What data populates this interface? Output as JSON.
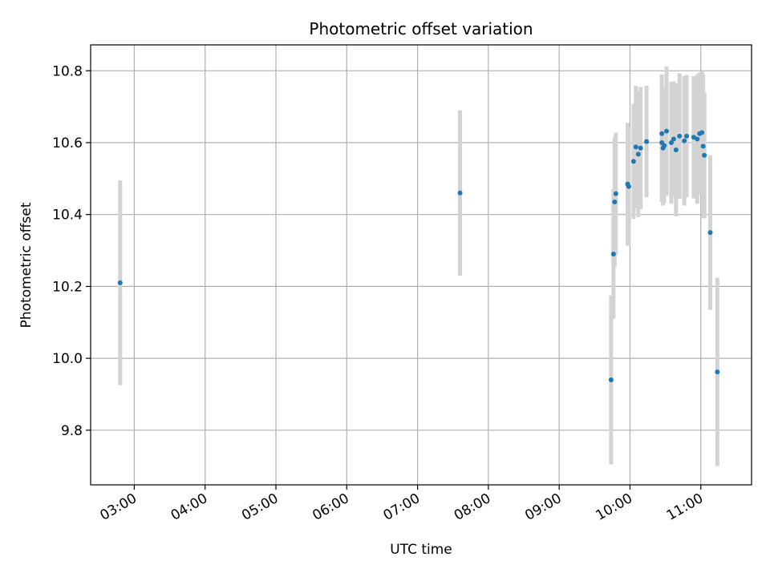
{
  "chart_data": {
    "type": "scatter",
    "title": "Photometric offset variation",
    "xlabel": "UTC time",
    "ylabel": "Photometric offset",
    "x_unit": "UTC hour of day",
    "xlim": [
      "02:23",
      "11:43"
    ],
    "ylim": [
      9.648,
      10.872
    ],
    "grid": true,
    "legend": "none",
    "colors": {
      "point": "#1f77b4",
      "errorbar": "#d3d3d3",
      "grid": "#b0b0b0",
      "axes": "#000000"
    },
    "x_ticks": [
      "03:00",
      "04:00",
      "05:00",
      "06:00",
      "07:00",
      "08:00",
      "09:00",
      "10:00",
      "11:00"
    ],
    "y_ticks": [
      "9.8",
      "10.0",
      "10.2",
      "10.4",
      "10.6",
      "10.8"
    ],
    "points": [
      {
        "x": "02:48",
        "y": 10.21,
        "err": 0.285
      },
      {
        "x": "07:36",
        "y": 10.46,
        "err": 0.23
      },
      {
        "x": "09:44",
        "y": 9.94,
        "err": 0.235
      },
      {
        "x": "09:46",
        "y": 10.29,
        "err": 0.18
      },
      {
        "x": "09:47",
        "y": 10.435,
        "err": 0.18
      },
      {
        "x": "09:48",
        "y": 10.458,
        "err": 0.17
      },
      {
        "x": "09:58",
        "y": 10.485,
        "err": 0.17
      },
      {
        "x": "09:59",
        "y": 10.478,
        "err": 0.165
      },
      {
        "x": "10:03",
        "y": 10.548,
        "err": 0.16
      },
      {
        "x": "10:05",
        "y": 10.588,
        "err": 0.17
      },
      {
        "x": "10:07",
        "y": 10.568,
        "err": 0.175
      },
      {
        "x": "10:09",
        "y": 10.585,
        "err": 0.17
      },
      {
        "x": "10:14",
        "y": 10.603,
        "err": 0.155
      },
      {
        "x": "10:27",
        "y": 10.625,
        "err": 0.165
      },
      {
        "x": "10:27",
        "y": 10.6,
        "err": 0.165
      },
      {
        "x": "10:28",
        "y": 10.585,
        "err": 0.16
      },
      {
        "x": "10:29",
        "y": 10.592,
        "err": 0.16
      },
      {
        "x": "10:31",
        "y": 10.632,
        "err": 0.18
      },
      {
        "x": "10:35",
        "y": 10.6,
        "err": 0.17
      },
      {
        "x": "10:37",
        "y": 10.61,
        "err": 0.16
      },
      {
        "x": "10:39",
        "y": 10.58,
        "err": 0.185
      },
      {
        "x": "10:42",
        "y": 10.618,
        "err": 0.175
      },
      {
        "x": "10:46",
        "y": 10.605,
        "err": 0.18
      },
      {
        "x": "10:48",
        "y": 10.618,
        "err": 0.17
      },
      {
        "x": "10:54",
        "y": 10.615,
        "err": 0.17
      },
      {
        "x": "10:57",
        "y": 10.61,
        "err": 0.18
      },
      {
        "x": "10:59",
        "y": 10.625,
        "err": 0.17
      },
      {
        "x": "11:01",
        "y": 10.628,
        "err": 0.17
      },
      {
        "x": "11:02",
        "y": 10.59,
        "err": 0.2
      },
      {
        "x": "11:03",
        "y": 10.565,
        "err": 0.175
      },
      {
        "x": "11:08",
        "y": 10.35,
        "err": 0.215
      },
      {
        "x": "11:14",
        "y": 9.962,
        "err": 0.262
      }
    ]
  }
}
